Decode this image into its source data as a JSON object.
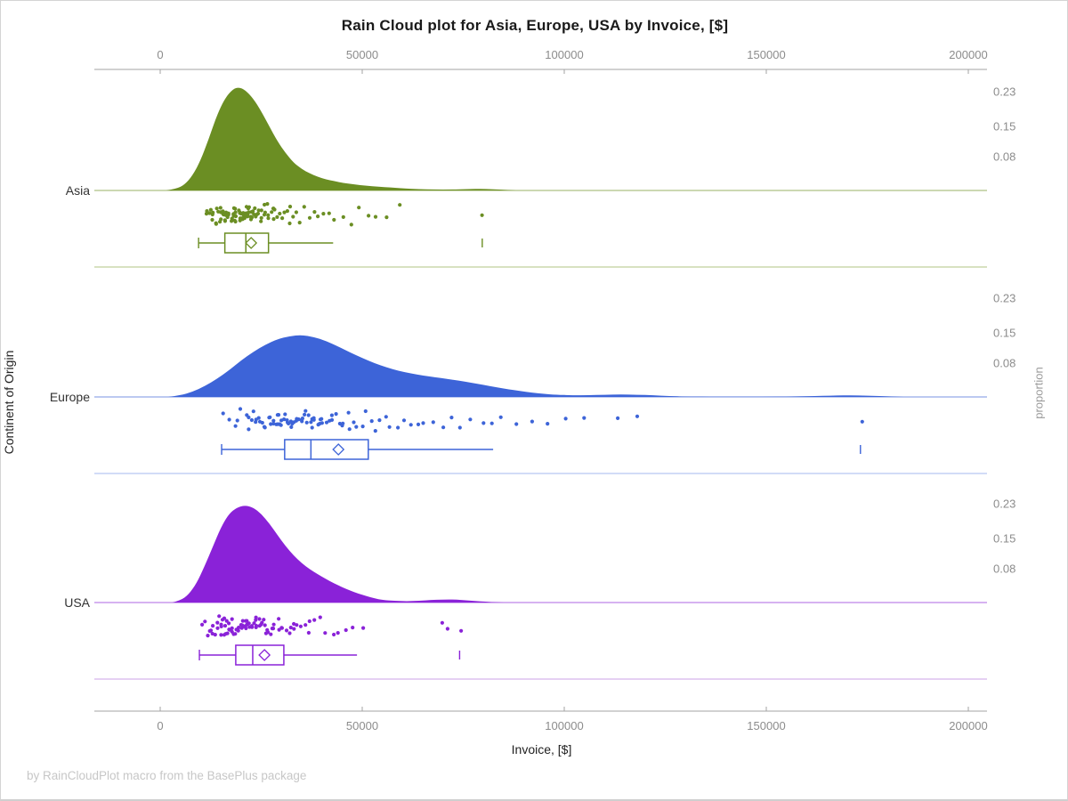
{
  "title": "Rain Cloud plot for Asia, Europe, USA by Invoice, [$]",
  "footer": "by RainCloudPlot macro from the BasePlus package",
  "axes": {
    "x_label": "Invoice, [$]",
    "x_tick_values": [
      0,
      50000,
      100000,
      150000,
      200000
    ],
    "x_tick_labels": [
      "0",
      "50000",
      "100000",
      "150000",
      "200000"
    ],
    "y_left_label": "Continent of Origin",
    "y_right_label": "proportion",
    "proportion_tick_values": [
      0.23,
      0.15,
      0.08
    ],
    "proportion_tick_labels": [
      "0.23",
      "0.15",
      "0.08"
    ]
  },
  "colors": {
    "axis_line": "#a3a3a3",
    "tick_text": "#8c8c8c",
    "title_text": "#1a1a1a",
    "footer_text": "#c7c7c7"
  },
  "chart_data": {
    "type": "raincloud",
    "x_range": [
      0,
      200000
    ],
    "proportion_axis_max": 0.25,
    "series": [
      {
        "name": "Asia",
        "color": "#6b8e23",
        "light_color": "#c0d19c",
        "density": [
          [
            1500,
            0
          ],
          [
            4000,
            0.004
          ],
          [
            6000,
            0.013
          ],
          [
            8000,
            0.035
          ],
          [
            10000,
            0.07
          ],
          [
            12000,
            0.12
          ],
          [
            14000,
            0.175
          ],
          [
            16000,
            0.215
          ],
          [
            18000,
            0.237
          ],
          [
            19500,
            0.241
          ],
          [
            21000,
            0.235
          ],
          [
            23000,
            0.215
          ],
          [
            25000,
            0.185
          ],
          [
            27000,
            0.15
          ],
          [
            29000,
            0.115
          ],
          [
            31000,
            0.088
          ],
          [
            33000,
            0.065
          ],
          [
            35000,
            0.05
          ],
          [
            37000,
            0.04
          ],
          [
            39000,
            0.032
          ],
          [
            41000,
            0.026
          ],
          [
            43000,
            0.022
          ],
          [
            45000,
            0.018
          ],
          [
            48000,
            0.014
          ],
          [
            51000,
            0.011
          ],
          [
            54000,
            0.009
          ],
          [
            57000,
            0.007
          ],
          [
            60000,
            0.005
          ],
          [
            64000,
            0.003
          ],
          [
            68000,
            0.002
          ],
          [
            72000,
            0.002
          ],
          [
            76000,
            0.003
          ],
          [
            80000,
            0.004
          ],
          [
            84000,
            0.002
          ],
          [
            88000,
            0
          ]
        ],
        "box": {
          "low": 9500,
          "q1": 16000,
          "median": 21200,
          "mean": 22500,
          "q3": 26800,
          "high": 42800,
          "outliers": [
            79700
          ]
        },
        "rain": [
          11200,
          11800,
          12300,
          12700,
          13100,
          13400,
          13800,
          14100,
          14300,
          14600,
          14900,
          15100,
          15400,
          15600,
          15900,
          16100,
          16300,
          16600,
          16800,
          17000,
          17200,
          17500,
          17700,
          17900,
          18100,
          18400,
          18600,
          18800,
          19000,
          19300,
          19500,
          19700,
          19900,
          20100,
          20400,
          20600,
          20900,
          21100,
          21300,
          21600,
          21800,
          22000,
          22300,
          22600,
          22900,
          23100,
          23400,
          23700,
          24000,
          24300,
          24600,
          24900,
          25200,
          25500,
          25900,
          26200,
          26600,
          27000,
          27400,
          27800,
          28200,
          28700,
          29100,
          29600,
          30100,
          30700,
          31300,
          31900,
          32600,
          33300,
          34100,
          34900,
          35800,
          36800,
          37900,
          39100,
          40400,
          41800,
          43400,
          45100,
          47000,
          49000,
          51200,
          53600,
          56200,
          59000,
          13000,
          14000,
          15000,
          16000,
          17000,
          18000,
          19000,
          20000,
          21000,
          22000,
          23000,
          16500,
          17800,
          19400,
          20700,
          21900,
          23500,
          25000,
          26400,
          28000,
          79700
        ]
      },
      {
        "name": "Europe",
        "color": "#3d64d8",
        "light_color": "#b8c8f2",
        "density": [
          [
            2000,
            0
          ],
          [
            5000,
            0.004
          ],
          [
            8000,
            0.012
          ],
          [
            11000,
            0.025
          ],
          [
            14000,
            0.042
          ],
          [
            17000,
            0.062
          ],
          [
            20000,
            0.085
          ],
          [
            23000,
            0.105
          ],
          [
            26000,
            0.122
          ],
          [
            29000,
            0.135
          ],
          [
            32000,
            0.142
          ],
          [
            35000,
            0.145
          ],
          [
            38000,
            0.14
          ],
          [
            41000,
            0.131
          ],
          [
            44000,
            0.118
          ],
          [
            47000,
            0.104
          ],
          [
            50000,
            0.091
          ],
          [
            53000,
            0.079
          ],
          [
            56000,
            0.069
          ],
          [
            59000,
            0.061
          ],
          [
            62000,
            0.055
          ],
          [
            65000,
            0.05
          ],
          [
            68000,
            0.046
          ],
          [
            71000,
            0.042
          ],
          [
            74000,
            0.038
          ],
          [
            77000,
            0.033
          ],
          [
            80000,
            0.028
          ],
          [
            83000,
            0.023
          ],
          [
            86000,
            0.018
          ],
          [
            89000,
            0.014
          ],
          [
            92000,
            0.01
          ],
          [
            95000,
            0.007
          ],
          [
            98000,
            0.005
          ],
          [
            102000,
            0.004
          ],
          [
            106000,
            0.004
          ],
          [
            110000,
            0.005
          ],
          [
            114000,
            0.006
          ],
          [
            118000,
            0.005
          ],
          [
            122000,
            0.004
          ],
          [
            126000,
            0.002
          ],
          [
            130000,
            0.001
          ],
          [
            138000,
            0.0005
          ],
          [
            148000,
            0.0005
          ],
          [
            158000,
            0.001
          ],
          [
            166000,
            0.003
          ],
          [
            172000,
            0.004
          ],
          [
            178000,
            0.002
          ],
          [
            184000,
            0
          ]
        ],
        "box": {
          "low": 15200,
          "q1": 30800,
          "median": 37300,
          "mean": 44100,
          "q3": 51500,
          "high": 82400,
          "outliers": [
            173300
          ]
        },
        "rain": [
          15500,
          17000,
          18200,
          19300,
          20200,
          21000,
          21800,
          22500,
          23200,
          23800,
          24400,
          25000,
          25600,
          26100,
          26700,
          27200,
          27700,
          28200,
          28700,
          29200,
          29700,
          30100,
          30600,
          31000,
          31500,
          31900,
          32400,
          32800,
          33300,
          33700,
          34200,
          34600,
          35100,
          35500,
          36000,
          36400,
          36900,
          37300,
          37800,
          38300,
          38800,
          39300,
          39800,
          40300,
          40900,
          41500,
          42100,
          42700,
          43400,
          44100,
          44800,
          45500,
          46300,
          47100,
          48000,
          48900,
          49900,
          50900,
          52000,
          53100,
          54300,
          55600,
          57000,
          58500,
          60100,
          61800,
          63600,
          65500,
          67500,
          69700,
          72000,
          74400,
          77000,
          79700,
          82000,
          84500,
          88000,
          92000,
          96000,
          100500,
          105000,
          113500,
          118500,
          28500,
          30000,
          31200,
          32000,
          33000,
          34000,
          35000,
          36500,
          38000,
          40000,
          29500,
          27000,
          25300,
          23500,
          21500,
          173300
        ]
      },
      {
        "name": "USA",
        "color": "#8a22d8",
        "light_color": "#d5b4ec",
        "density": [
          [
            3000,
            0
          ],
          [
            5000,
            0.005
          ],
          [
            7000,
            0.018
          ],
          [
            9000,
            0.045
          ],
          [
            11000,
            0.085
          ],
          [
            13000,
            0.13
          ],
          [
            15000,
            0.175
          ],
          [
            17000,
            0.207
          ],
          [
            19000,
            0.222
          ],
          [
            21000,
            0.227
          ],
          [
            23000,
            0.222
          ],
          [
            25000,
            0.207
          ],
          [
            27000,
            0.185
          ],
          [
            29000,
            0.158
          ],
          [
            31000,
            0.132
          ],
          [
            33000,
            0.11
          ],
          [
            35000,
            0.092
          ],
          [
            37000,
            0.078
          ],
          [
            39000,
            0.066
          ],
          [
            41000,
            0.055
          ],
          [
            43000,
            0.045
          ],
          [
            45000,
            0.036
          ],
          [
            47000,
            0.028
          ],
          [
            49000,
            0.021
          ],
          [
            51000,
            0.015
          ],
          [
            53000,
            0.01
          ],
          [
            55000,
            0.006
          ],
          [
            58000,
            0.004
          ],
          [
            61000,
            0.003
          ],
          [
            64000,
            0.004
          ],
          [
            67000,
            0.006
          ],
          [
            70000,
            0.007
          ],
          [
            73000,
            0.007
          ],
          [
            76000,
            0.005
          ],
          [
            79000,
            0.003
          ],
          [
            82000,
            0.001
          ],
          [
            85000,
            0
          ]
        ],
        "box": {
          "low": 9700,
          "q1": 18700,
          "median": 22900,
          "mean": 25800,
          "q3": 30600,
          "high": 48700,
          "outliers": [
            74100
          ]
        },
        "rain": [
          10000,
          10800,
          11500,
          12100,
          12600,
          13100,
          13500,
          13900,
          14300,
          14700,
          15000,
          15400,
          15700,
          16000,
          16300,
          16600,
          16900,
          17200,
          17500,
          17800,
          18100,
          18400,
          18700,
          19000,
          19300,
          19600,
          19900,
          20200,
          20500,
          20800,
          21100,
          21400,
          21700,
          22000,
          22300,
          22700,
          23000,
          23400,
          23800,
          24200,
          24600,
          25000,
          25400,
          25800,
          26300,
          26800,
          27300,
          27800,
          28400,
          29000,
          29600,
          30300,
          31000,
          31700,
          32500,
          33300,
          34200,
          35100,
          36100,
          37200,
          38400,
          39700,
          41100,
          42600,
          44200,
          46000,
          47900,
          49900,
          13000,
          14000,
          15500,
          16500,
          17000,
          18000,
          19000,
          20000,
          21000,
          22000,
          23500,
          25500,
          28000,
          30000,
          33000,
          36500,
          24000,
          26000,
          69800,
          71500,
          74100
        ]
      }
    ]
  }
}
